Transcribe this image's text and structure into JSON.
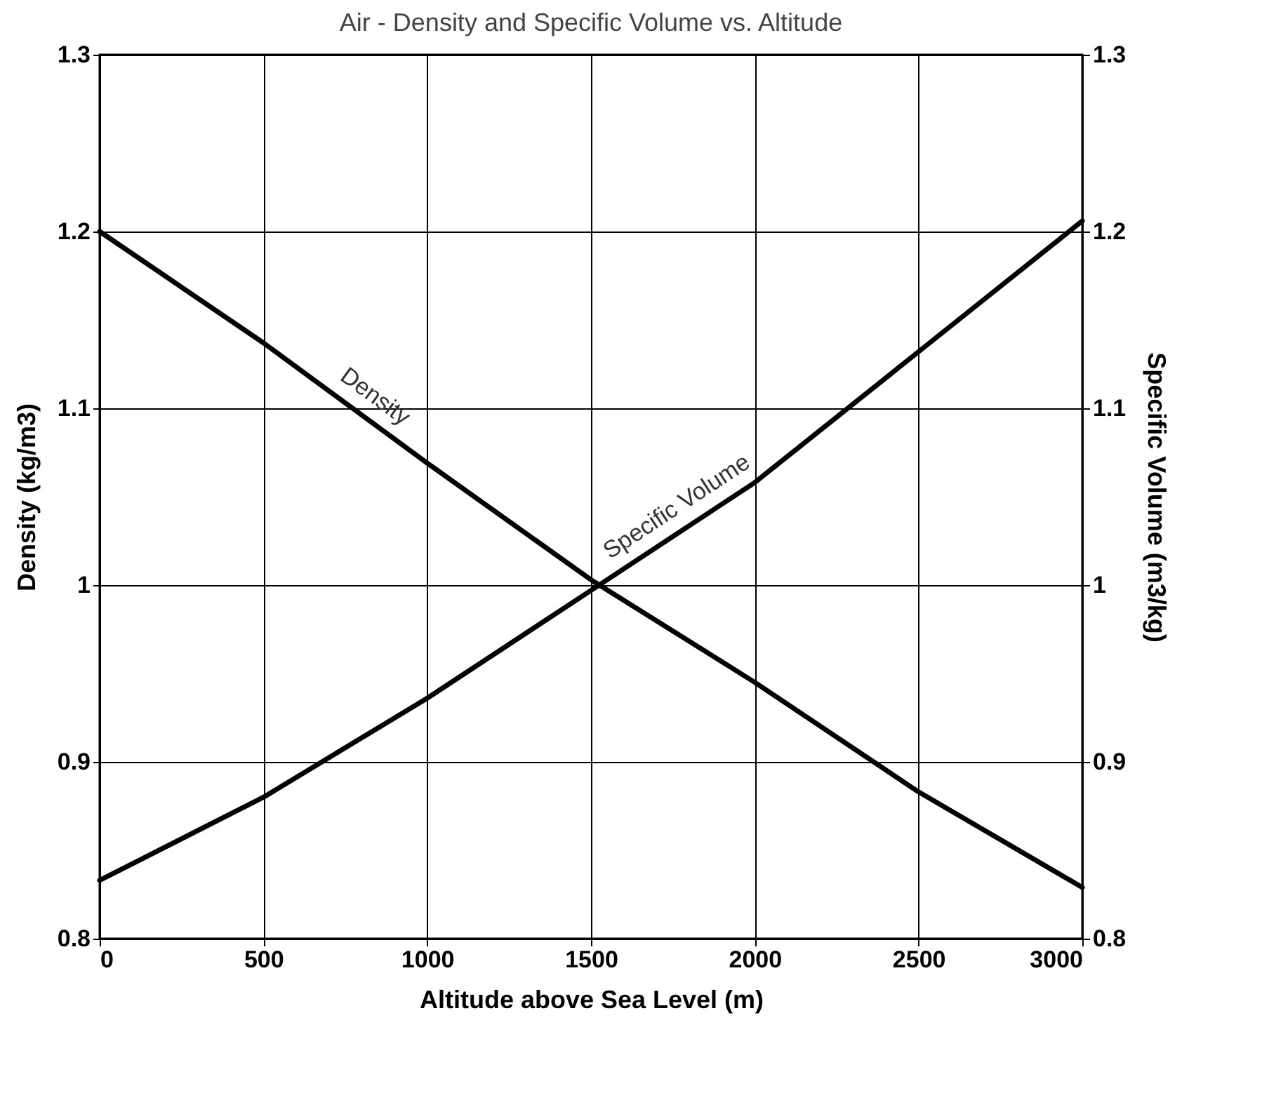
{
  "chart_data": {
    "type": "line",
    "title": "Air - Density and Specific Volume vs. Altitude",
    "xlabel": "Altitude above Sea Level (m)",
    "ylabel": "Density (kg/m3)",
    "y2label": "Specific Volume (m3/kg)",
    "x": [
      0,
      500,
      1000,
      1500,
      2000,
      2500,
      3000
    ],
    "series": [
      {
        "name": "Density",
        "color": "#000000",
        "values": [
          1.2,
          1.137,
          1.069,
          1.003,
          0.945,
          0.883,
          0.829
        ]
      },
      {
        "name": "Specific Volume",
        "color": "#000000",
        "axis": "y2",
        "values": [
          0.833,
          0.88,
          0.936,
          0.997,
          1.058,
          1.132,
          1.206
        ]
      }
    ],
    "xlim": [
      0,
      3000
    ],
    "xticks": [
      0,
      500,
      1000,
      1500,
      2000,
      2500,
      3000
    ],
    "ylim": [
      0.8,
      1.3
    ],
    "yticks": [
      0.8,
      0.9,
      1,
      1.1,
      1.2,
      1.3
    ],
    "y2lim": [
      0.8,
      1.3
    ],
    "y2ticks": [
      0.8,
      0.9,
      1,
      1.1,
      1.2,
      1.3
    ],
    "grid": true,
    "marker": "none",
    "line_style": "solid"
  }
}
